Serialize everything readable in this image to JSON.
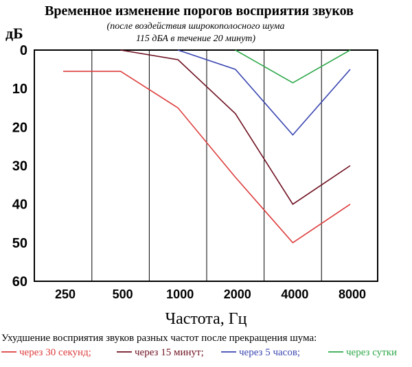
{
  "chart_data": {
    "type": "line",
    "title": "Временное изменение порогов восприятия звуков",
    "subtitle_lines": [
      "(после воздействия широкополосного шума",
      "115 дБА в течение 20 минут)"
    ],
    "ylabel": "дБ",
    "xlabel": "Частота, Гц",
    "categories": [
      "250",
      "500",
      "1000",
      "2000",
      "4000",
      "8000"
    ],
    "y_ticks": [
      "0",
      "10",
      "20",
      "30",
      "40",
      "50",
      "60"
    ],
    "ylim": [
      0,
      60
    ],
    "y_inverted": true,
    "grid": "vertical",
    "caption": "Ухудшение восприятия звуков разных частот после прекращения шума:",
    "series": [
      {
        "name": "через 30 секунд;",
        "color": "#dd3c3c",
        "points": [
          [
            0,
            5.5
          ],
          [
            1,
            5.5
          ],
          [
            2,
            15
          ],
          [
            3,
            33
          ],
          [
            4,
            50
          ],
          [
            5,
            40
          ]
        ]
      },
      {
        "name": "через 15 минут;",
        "color": "#6e1020",
        "points": [
          [
            1,
            0
          ],
          [
            2,
            2.5
          ],
          [
            3,
            16.5
          ],
          [
            4,
            40
          ],
          [
            5,
            30
          ]
        ]
      },
      {
        "name": "через 5 часов;",
        "color": "#3a46b0",
        "points": [
          [
            2,
            0
          ],
          [
            3,
            5
          ],
          [
            4,
            22
          ],
          [
            5,
            5
          ]
        ]
      },
      {
        "name": "через сутки",
        "color": "#2ea84a",
        "points": [
          [
            3,
            0
          ],
          [
            4,
            8.5
          ],
          [
            5,
            0
          ]
        ]
      }
    ]
  }
}
